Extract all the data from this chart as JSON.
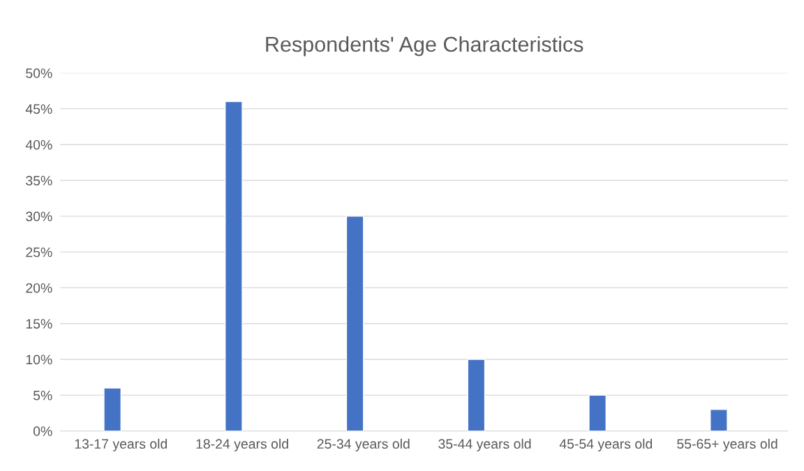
{
  "chart_data": {
    "type": "bar",
    "title": "Respondents' Age Characteristics",
    "categories": [
      "13-17 years old",
      "18-24 years old",
      "25-34 years old",
      "35-44 years old",
      "45-54 years old",
      "55-65+ years old"
    ],
    "values": [
      6,
      46,
      30,
      10,
      5,
      3
    ],
    "color": "#4472c4",
    "ylim": [
      0,
      50
    ],
    "yticks": [
      {
        "value": 0,
        "label": "0%"
      },
      {
        "value": 5,
        "label": "5%"
      },
      {
        "value": 10,
        "label": "10%"
      },
      {
        "value": 15,
        "label": "15%"
      },
      {
        "value": 20,
        "label": "20%"
      },
      {
        "value": 25,
        "label": "25%"
      },
      {
        "value": 30,
        "label": "30%"
      },
      {
        "value": 35,
        "label": "35%"
      },
      {
        "value": 40,
        "label": "40%"
      },
      {
        "value": 45,
        "label": "45%"
      },
      {
        "value": 50,
        "label": "50%"
      }
    ],
    "grid": "y",
    "legend": false
  }
}
